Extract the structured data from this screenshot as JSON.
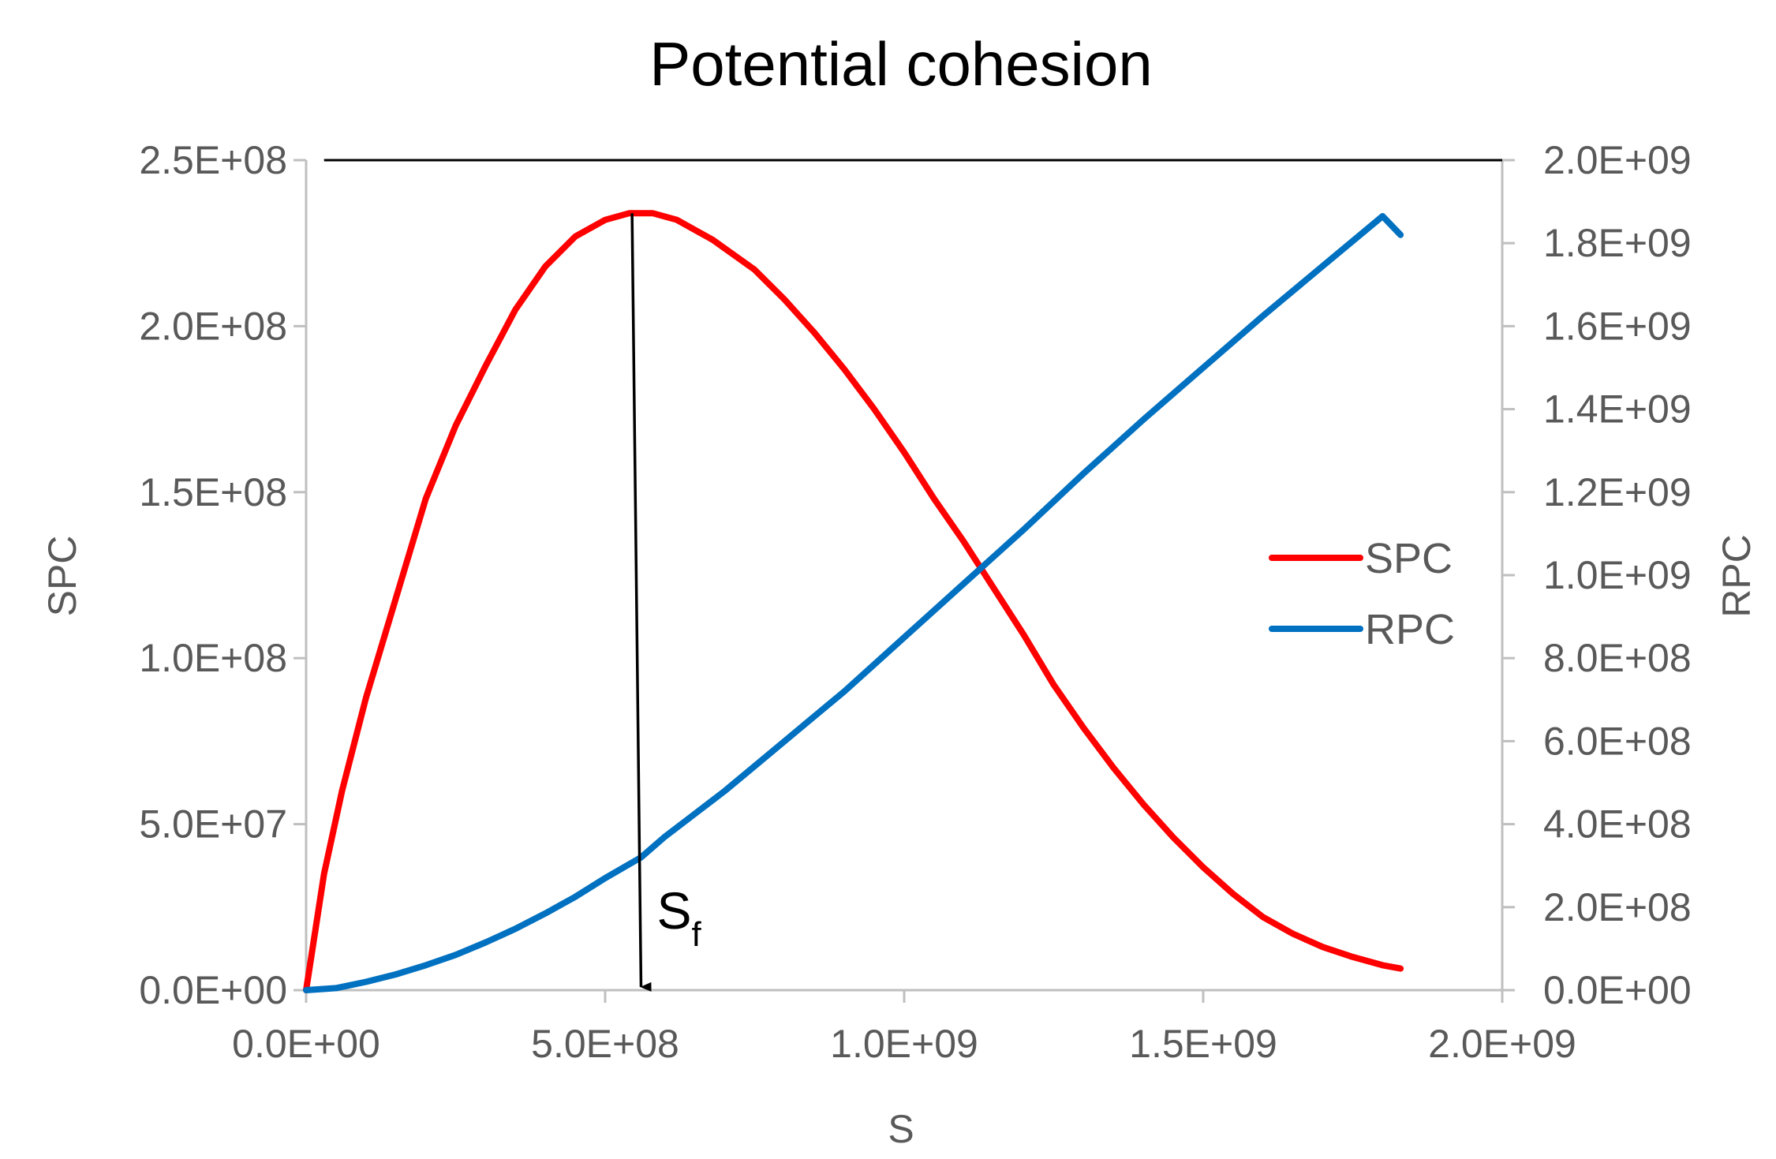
{
  "chart_data": {
    "type": "line",
    "title": "Potential cohesion",
    "xlabel": "S",
    "ylabel": "SPC",
    "y2label": "RPC",
    "xlim": [
      0,
      2000000000
    ],
    "ylim": [
      0,
      250000000
    ],
    "y2lim": [
      0,
      2000000000
    ],
    "x_ticks": [
      "0.0E+00",
      "5.0E+08",
      "1.0E+09",
      "1.5E+09",
      "2.0E+09"
    ],
    "y_ticks": [
      "0.0E+00",
      "5.0E+07",
      "1.0E+08",
      "1.5E+08",
      "2.0E+08",
      "2.5E+08"
    ],
    "y2_ticks": [
      "0.0E+00",
      "2.0E+08",
      "4.0E+08",
      "6.0E+08",
      "8.0E+08",
      "1.0E+09",
      "1.2E+09",
      "1.4E+09",
      "1.6E+09",
      "1.8E+09",
      "2.0E+09"
    ],
    "legend": {
      "position": "right"
    },
    "series": [
      {
        "name": "SPC",
        "axis": "left",
        "color": "#ff0000",
        "x": [
          0,
          30000000,
          60000000,
          100000000,
          150000000,
          200000000,
          250000000,
          300000000,
          350000000,
          400000000,
          450000000,
          500000000,
          540000000,
          580000000,
          620000000,
          680000000,
          750000000,
          800000000,
          850000000,
          900000000,
          950000000,
          1000000000,
          1050000000,
          1100000000,
          1150000000,
          1200000000,
          1250000000,
          1300000000,
          1350000000,
          1400000000,
          1450000000,
          1500000000,
          1550000000,
          1600000000,
          1650000000,
          1700000000,
          1750000000,
          1800000000,
          1830000000
        ],
        "values": [
          0,
          35000000,
          60000000,
          88000000,
          118000000,
          148000000,
          170000000,
          188000000,
          205000000,
          218000000,
          227000000,
          232000000,
          234000000,
          234000000,
          232000000,
          226000000,
          217000000,
          208000000,
          198000000,
          187000000,
          175000000,
          162000000,
          148000000,
          135000000,
          121000000,
          107000000,
          92000000,
          79000000,
          67000000,
          56000000,
          46000000,
          37000000,
          29000000,
          22000000,
          17000000,
          13000000,
          10000000,
          7500000,
          6500000
        ]
      },
      {
        "name": "RPC",
        "axis": "right",
        "color": "#0070c0",
        "x": [
          0,
          50000000,
          100000000,
          150000000,
          200000000,
          250000000,
          300000000,
          350000000,
          400000000,
          450000000,
          500000000,
          560000000,
          600000000,
          650000000,
          700000000,
          750000000,
          800000000,
          850000000,
          900000000,
          950000000,
          1000000000,
          1100000000,
          1150000000,
          1200000000,
          1300000000,
          1400000000,
          1500000000,
          1600000000,
          1700000000,
          1800000000,
          1830000000
        ],
        "values": [
          0,
          5000000,
          20000000,
          38000000,
          60000000,
          85000000,
          115000000,
          148000000,
          185000000,
          225000000,
          270000000,
          320000000,
          370000000,
          425000000,
          480000000,
          540000000,
          600000000,
          660000000,
          720000000,
          785000000,
          850000000,
          980000000,
          1045000000,
          1110000000,
          1245000000,
          1375000000,
          1500000000,
          1625000000,
          1745000000,
          1865000000,
          1820000000
        ]
      }
    ],
    "annotations": [
      {
        "type": "hline",
        "axis": "left",
        "y": 250000000,
        "x_from": 30000000,
        "x_to": 2000000000,
        "color": "#000000"
      },
      {
        "type": "arrow",
        "label": "S",
        "subscript": "f",
        "x_start": 545000000,
        "x_end": 560000000,
        "y_start": 234000000,
        "y_end": 0,
        "color": "#000000"
      }
    ]
  }
}
